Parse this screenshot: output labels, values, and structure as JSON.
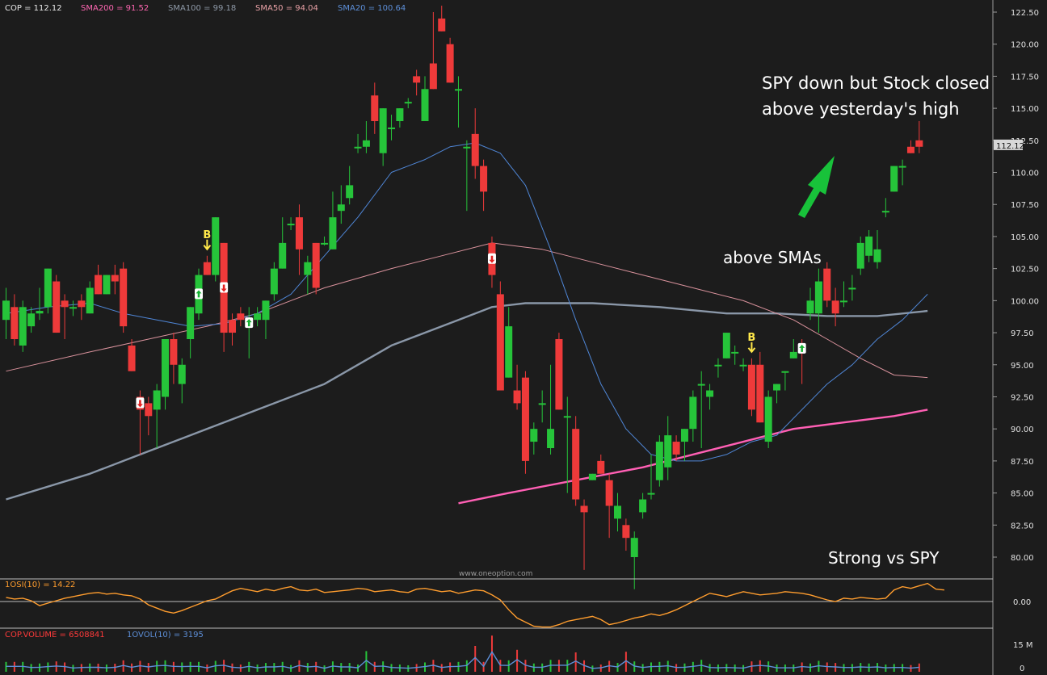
{
  "chart_data": {
    "type": "candlestick",
    "symbol": "COP",
    "legend": {
      "price": "COP = 112.12",
      "sma200": "SMA200 = 91.52",
      "sma100": "SMA100 = 99.18",
      "sma50": "SMA50 = 94.04",
      "sma20": "SMA20 = 100.64"
    },
    "y_axis": {
      "ticks": [
        "122.50",
        "120.00",
        "117.50",
        "115.00",
        "112.50",
        "110.00",
        "107.50",
        "105.00",
        "102.50",
        "100.00",
        "97.50",
        "95.00",
        "92.50",
        "90.00",
        "87.50",
        "85.00",
        "82.50",
        "80.00"
      ],
      "ylim": [
        78.3,
        123.4
      ]
    },
    "last_price": "112.12",
    "candles": [
      [
        98.5,
        101.0,
        97.0,
        100.0
      ],
      [
        99.5,
        100.5,
        96.5,
        97.0
      ],
      [
        96.5,
        100.0,
        96.0,
        99.5
      ],
      [
        98.0,
        99.5,
        97.5,
        99.0
      ],
      [
        99.0,
        101.0,
        98.5,
        99.2
      ],
      [
        99.5,
        102.5,
        99.0,
        102.5
      ],
      [
        101.5,
        102.0,
        97.5,
        97.5
      ],
      [
        100.0,
        100.5,
        97.0,
        99.5
      ],
      [
        99.5,
        100.0,
        98.8,
        99.5
      ],
      [
        100.0,
        100.5,
        98.5,
        99.5
      ],
      [
        99.0,
        101.5,
        99.0,
        101.0
      ],
      [
        102.0,
        102.8,
        100.5,
        100.5
      ],
      [
        100.5,
        102.0,
        100.5,
        102.0
      ],
      [
        102.0,
        102.8,
        100.5,
        101.5
      ],
      [
        102.5,
        103.0,
        97.5,
        98.0
      ],
      [
        96.5,
        97.0,
        94.5,
        94.5
      ],
      [
        92.5,
        93.0,
        88.0,
        91.5
      ],
      [
        92.0,
        92.5,
        89.5,
        91.0
      ],
      [
        91.5,
        93.5,
        88.5,
        93.0
      ],
      [
        92.5,
        97.0,
        91.5,
        97.0
      ],
      [
        97.0,
        97.5,
        93.5,
        95.0
      ],
      [
        93.5,
        95.5,
        92.0,
        95.0
      ],
      [
        97.0,
        99.5,
        95.5,
        99.5
      ],
      [
        99.0,
        102.5,
        98.5,
        102.0
      ],
      [
        103.0,
        103.5,
        102.0,
        102.0
      ],
      [
        102.0,
        106.5,
        101.5,
        106.5
      ],
      [
        104.5,
        104.5,
        96.0,
        97.5
      ],
      [
        98.5,
        99.0,
        96.5,
        97.5
      ],
      [
        99.0,
        99.5,
        98.0,
        98.5
      ],
      [
        98.0,
        99.5,
        95.5,
        98.5
      ],
      [
        98.5,
        99.5,
        98.0,
        99.0
      ],
      [
        98.5,
        100.0,
        97.0,
        100.0
      ],
      [
        100.5,
        103.0,
        100.0,
        102.5
      ],
      [
        102.5,
        106.5,
        102.5,
        104.5
      ],
      [
        106.0,
        106.5,
        105.5,
        106.0
      ],
      [
        106.5,
        107.5,
        102.0,
        104.0
      ],
      [
        102.0,
        103.5,
        100.5,
        103.0
      ],
      [
        104.5,
        104.5,
        100.5,
        101.0
      ],
      [
        104.5,
        105.0,
        104.3,
        104.5
      ],
      [
        104.0,
        108.5,
        104.0,
        106.5
      ],
      [
        107.0,
        109.0,
        106.0,
        107.5
      ],
      [
        108.0,
        110.5,
        107.5,
        109.0
      ],
      [
        112.0,
        113.0,
        111.5,
        112.0
      ],
      [
        112.0,
        114.0,
        111.5,
        112.5
      ],
      [
        116.0,
        117.0,
        113.0,
        114.0
      ],
      [
        111.5,
        115.0,
        110.5,
        115.0
      ],
      [
        113.5,
        114.5,
        112.5,
        113.5
      ],
      [
        114.0,
        115.0,
        113.5,
        115.0
      ],
      [
        115.5,
        115.8,
        115.0,
        115.5
      ],
      [
        117.5,
        118.0,
        116.0,
        117.0
      ],
      [
        114.0,
        117.5,
        114.0,
        116.5
      ],
      [
        118.5,
        122.5,
        116.5,
        116.5
      ],
      [
        122.0,
        123.0,
        121.0,
        121.0
      ],
      [
        120.0,
        120.5,
        117.0,
        117.0
      ],
      [
        116.5,
        117.5,
        113.5,
        116.5
      ],
      [
        112.0,
        112.5,
        107.0,
        112.0
      ],
      [
        113.0,
        115.0,
        109.5,
        110.5
      ],
      [
        110.5,
        111.0,
        107.0,
        108.5
      ],
      [
        104.5,
        105.0,
        101.0,
        102.0
      ],
      [
        100.5,
        101.5,
        93.0,
        93.0
      ],
      [
        94.0,
        99.5,
        94.0,
        98.0
      ],
      [
        93.0,
        95.0,
        91.5,
        92.0
      ],
      [
        94.0,
        94.5,
        86.5,
        87.5
      ],
      [
        89.0,
        90.5,
        88.0,
        90.0
      ],
      [
        92.0,
        93.0,
        90.5,
        92.0
      ],
      [
        88.5,
        95.0,
        88.0,
        90.0
      ],
      [
        97.0,
        97.5,
        91.5,
        91.5
      ],
      [
        91.0,
        92.5,
        85.0,
        91.0
      ],
      [
        90.0,
        91.0,
        84.0,
        84.5
      ],
      [
        84.0,
        84.5,
        79.0,
        83.5
      ],
      [
        86.0,
        86.5,
        86.0,
        86.5
      ],
      [
        87.5,
        88.0,
        86.5,
        86.5
      ],
      [
        86.0,
        86.5,
        81.5,
        84.0
      ],
      [
        83.0,
        85.0,
        82.0,
        84.0
      ],
      [
        82.5,
        83.0,
        80.5,
        81.5
      ],
      [
        80.0,
        82.0,
        77.5,
        81.5
      ],
      [
        83.5,
        85.0,
        83.0,
        84.5
      ],
      [
        85.0,
        88.0,
        84.5,
        85.0
      ],
      [
        86.0,
        89.5,
        85.5,
        89.0
      ],
      [
        87.0,
        91.0,
        86.0,
        89.5
      ],
      [
        89.0,
        89.5,
        87.5,
        88.0
      ],
      [
        89.0,
        90.0,
        87.5,
        90.0
      ],
      [
        90.0,
        93.0,
        89.0,
        92.5
      ],
      [
        93.5,
        94.5,
        88.5,
        93.5
      ],
      [
        92.5,
        93.5,
        91.5,
        93.0
      ],
      [
        95.0,
        95.5,
        94.0,
        95.0
      ],
      [
        95.5,
        97.5,
        95.5,
        97.5
      ],
      [
        96.0,
        96.5,
        95.0,
        96.0
      ],
      [
        95.0,
        95.5,
        94.5,
        95.0
      ],
      [
        95.0,
        95.5,
        91.0,
        91.5
      ],
      [
        95.0,
        96.0,
        90.5,
        90.5
      ],
      [
        89.0,
        93.0,
        88.5,
        92.5
      ],
      [
        93.0,
        93.5,
        92.0,
        93.5
      ],
      [
        94.5,
        94.5,
        93.0,
        94.5
      ],
      [
        95.5,
        97.0,
        95.5,
        96.0
      ],
      [
        96.5,
        97.0,
        93.5,
        96.0
      ],
      [
        99.0,
        101.0,
        98.5,
        100.0
      ],
      [
        99.0,
        102.5,
        97.5,
        101.5
      ],
      [
        102.5,
        103.0,
        99.5,
        100.0
      ],
      [
        100.0,
        101.0,
        98.0,
        99.0
      ],
      [
        100.0,
        101.5,
        99.5,
        100.0
      ],
      [
        101.0,
        102.0,
        100.0,
        101.0
      ],
      [
        102.5,
        105.0,
        102.0,
        104.5
      ],
      [
        103.5,
        105.5,
        103.0,
        105.0
      ],
      [
        103.0,
        105.5,
        102.5,
        104.0
      ],
      [
        107.0,
        108.0,
        106.5,
        107.0
      ],
      [
        108.5,
        110.5,
        108.5,
        110.5
      ],
      [
        110.5,
        111.0,
        109.0,
        110.5
      ],
      [
        112.0,
        112.5,
        111.5,
        111.5
      ],
      [
        112.5,
        114.0,
        111.5,
        112.0
      ]
    ],
    "sma20": [
      [
        0,
        99.0
      ],
      [
        5,
        99.5
      ],
      [
        10,
        99.8
      ],
      [
        14,
        99.0
      ],
      [
        18,
        98.5
      ],
      [
        22,
        98.0
      ],
      [
        26,
        98.2
      ],
      [
        30,
        99.0
      ],
      [
        34,
        100.5
      ],
      [
        38,
        103.5
      ],
      [
        42,
        106.5
      ],
      [
        46,
        110.0
      ],
      [
        50,
        111.0
      ],
      [
        53,
        112.0
      ],
      [
        56,
        112.3
      ],
      [
        59,
        111.5
      ],
      [
        62,
        109.0
      ],
      [
        65,
        104.0
      ],
      [
        68,
        98.5
      ],
      [
        71,
        93.5
      ],
      [
        74,
        90.0
      ],
      [
        77,
        88.0
      ],
      [
        80,
        87.5
      ],
      [
        83,
        87.5
      ],
      [
        86,
        88.0
      ],
      [
        89,
        89.0
      ],
      [
        92,
        89.5
      ],
      [
        95,
        91.5
      ],
      [
        98,
        93.5
      ],
      [
        101,
        95.0
      ],
      [
        104,
        97.0
      ],
      [
        107,
        98.5
      ],
      [
        110,
        100.5
      ]
    ],
    "sma50": [
      [
        0,
        94.5
      ],
      [
        10,
        96.0
      ],
      [
        17,
        97.0
      ],
      [
        24,
        98.0
      ],
      [
        30,
        99.0
      ],
      [
        38,
        101.0
      ],
      [
        46,
        102.5
      ],
      [
        52,
        103.5
      ],
      [
        58,
        104.5
      ],
      [
        64,
        104.0
      ],
      [
        70,
        103.0
      ],
      [
        76,
        102.0
      ],
      [
        82,
        101.0
      ],
      [
        88,
        100.0
      ],
      [
        94,
        98.5
      ],
      [
        98,
        97.0
      ],
      [
        102,
        95.5
      ],
      [
        106,
        94.2
      ],
      [
        110,
        94.0
      ]
    ],
    "sma100": [
      [
        0,
        84.5
      ],
      [
        10,
        86.5
      ],
      [
        16,
        88.0
      ],
      [
        22,
        89.5
      ],
      [
        30,
        91.5
      ],
      [
        38,
        93.5
      ],
      [
        46,
        96.5
      ],
      [
        54,
        98.5
      ],
      [
        58,
        99.5
      ],
      [
        62,
        99.8
      ],
      [
        70,
        99.8
      ],
      [
        78,
        99.5
      ],
      [
        86,
        99.0
      ],
      [
        92,
        99.0
      ],
      [
        98,
        98.8
      ],
      [
        104,
        98.8
      ],
      [
        110,
        99.2
      ]
    ],
    "sma200": [
      [
        54,
        84.2
      ],
      [
        60,
        85.0
      ],
      [
        68,
        86.0
      ],
      [
        76,
        87.0
      ],
      [
        82,
        88.0
      ],
      [
        88,
        89.0
      ],
      [
        94,
        90.0
      ],
      [
        100,
        90.5
      ],
      [
        106,
        91.0
      ],
      [
        110,
        91.5
      ]
    ],
    "signals": [
      {
        "i": 16,
        "type": "down"
      },
      {
        "i": 23,
        "type": "up"
      },
      {
        "i": 24,
        "type": "B"
      },
      {
        "i": 26,
        "type": "down"
      },
      {
        "i": 29,
        "type": "up"
      },
      {
        "i": 58,
        "type": "down"
      },
      {
        "i": 89,
        "type": "B"
      },
      {
        "i": 95,
        "type": "up"
      }
    ],
    "annotations": {
      "line1": "SPY down but Stock closed",
      "line2": "above yesterday's high",
      "sma_note": "above SMAs",
      "strength": "Strong vs SPY",
      "watermark": "www.oneoption.com"
    },
    "osi_panel": {
      "label": "1OSI(10) = 14.22",
      "tick": "0.00",
      "values": [
        5,
        3,
        4,
        1,
        -5,
        -2,
        1,
        4,
        6,
        8,
        10,
        11,
        9,
        10,
        8,
        7,
        3,
        -4,
        -8,
        -12,
        -14,
        -11,
        -7,
        -3,
        1,
        3,
        8,
        13,
        16,
        14,
        12,
        15,
        13,
        16,
        18,
        14,
        13,
        15,
        11,
        12,
        13,
        14,
        16,
        15,
        12,
        13,
        14,
        12,
        11,
        15,
        16,
        14,
        12,
        13,
        10,
        12,
        14,
        13,
        8,
        2,
        -10,
        -20,
        -25,
        -30,
        -31,
        -31,
        -28,
        -24,
        -22,
        -20,
        -18,
        -22,
        -28,
        -26,
        -23,
        -20,
        -18,
        -15,
        -17,
        -14,
        -10,
        -5,
        0,
        5,
        10,
        8,
        6,
        9,
        12,
        10,
        8,
        9,
        10,
        12,
        11,
        10,
        8,
        5,
        2,
        0,
        4,
        3,
        5,
        4,
        3,
        4,
        14,
        18,
        16,
        19,
        22,
        15,
        14
      ]
    },
    "volume_panel": {
      "label": "COP.VOLUME = 6508841",
      "vol10_label": "1OVOL(10) = 3195",
      "ticks": [
        "15 M",
        "0"
      ]
    }
  }
}
